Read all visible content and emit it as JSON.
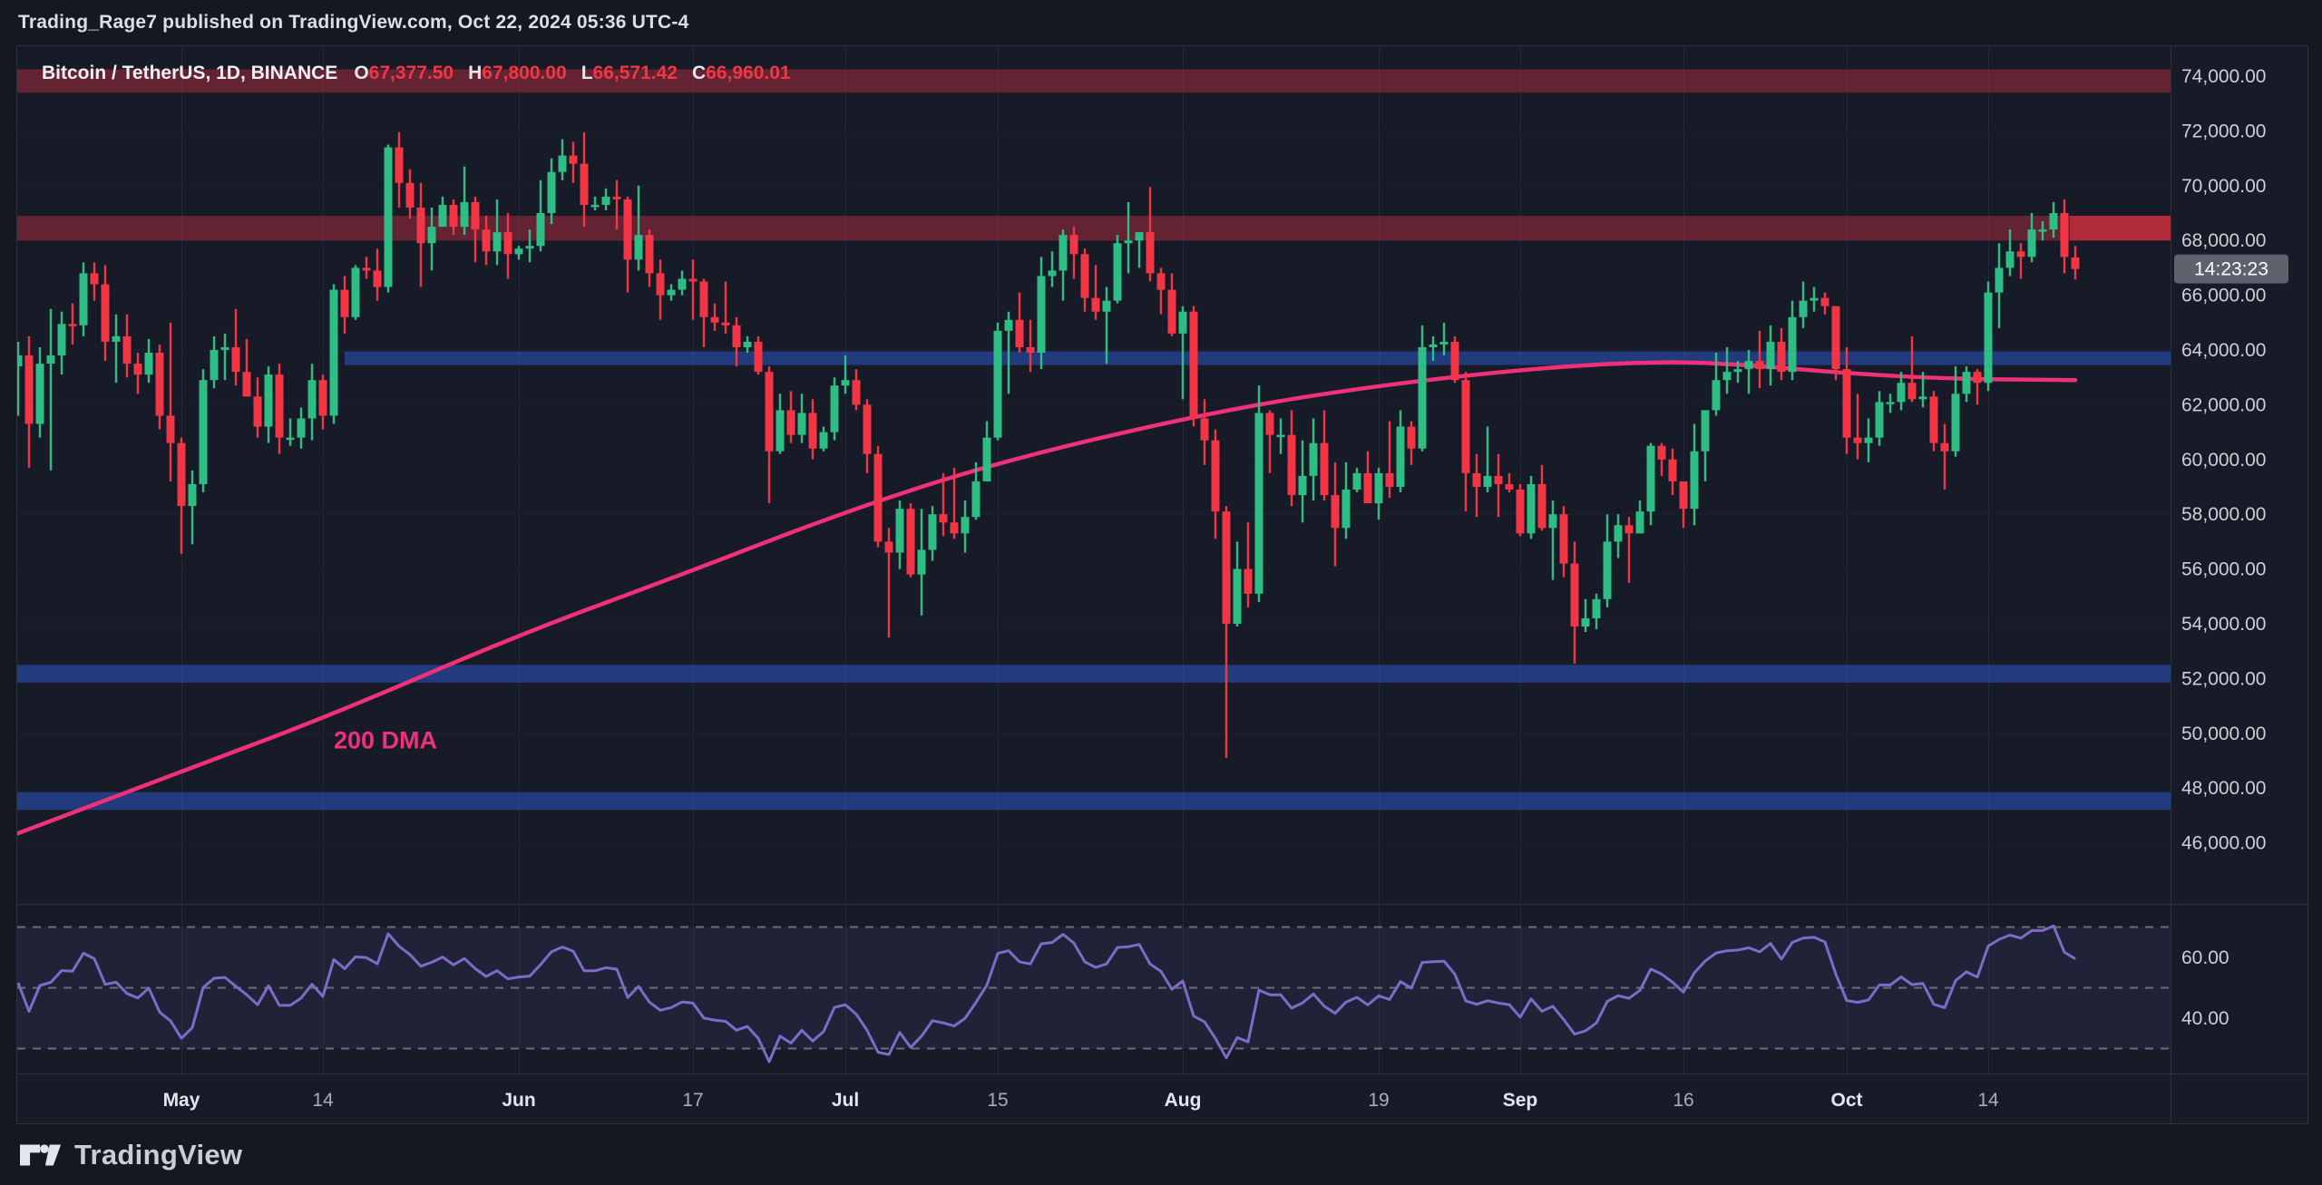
{
  "attribution_bar": {
    "text": "Trading_Rage7 published on TradingView.com, Oct 22, 2024 05:36 UTC-4"
  },
  "legend": {
    "symbol": "Bitcoin / TetherUS, 1D, BINANCE",
    "items": [
      {
        "label": "O",
        "value": "67,377.50"
      },
      {
        "label": "H",
        "value": "67,800.00"
      },
      {
        "label": "L",
        "value": "66,571.42"
      },
      {
        "label": "C",
        "value": "66,960.01"
      }
    ]
  },
  "footer": {
    "brand": "TradingView"
  },
  "colors": {
    "page_bg": "#141820",
    "pane_bg": "#161b27",
    "frame": "#2c3140",
    "grid_h": "#1d2230",
    "grid_v": "#232939",
    "axis_text": "#cbcfd8",
    "tick_major": "#e3e6ee",
    "tick_minor": "#a7acb8",
    "up": "#2ebd85",
    "down": "#f23645",
    "ma": "#f0317a",
    "rsi_line": "#7e6bc8",
    "rsi_fill": "rgba(126,100,210,0.10)",
    "rsi_level": "#6b6e79",
    "zone_red": "rgba(178,44,62,0.50)",
    "zone_red_bright": "rgba(242,54,69,0.55)",
    "zone_blue": "rgba(45,85,197,0.55)",
    "badge_bg": "#5e626c",
    "badge_text": "#ffffff"
  },
  "chart_data": {
    "type": "candlestick",
    "title": "Bitcoin / TetherUS, 1D, BINANCE",
    "start_date": "2024-04-15",
    "interval": "1D",
    "countdown": "14:23:23",
    "price_axis": {
      "min": 46000,
      "max": 74000,
      "step": 2000,
      "ylim": [
        43600,
        75100
      ]
    },
    "rsi_axis_labels": [
      60,
      40
    ],
    "rsi": {
      "period": 14,
      "levels": [
        70,
        50,
        30
      ]
    },
    "time_ticks": [
      {
        "label": "May",
        "day": 16,
        "major": true
      },
      {
        "label": "14",
        "day": 29,
        "major": false
      },
      {
        "label": "Jun",
        "day": 47,
        "major": true
      },
      {
        "label": "17",
        "day": 63,
        "major": false
      },
      {
        "label": "Jul",
        "day": 77,
        "major": true
      },
      {
        "label": "15",
        "day": 91,
        "major": false
      },
      {
        "label": "Aug",
        "day": 108,
        "major": true
      },
      {
        "label": "19",
        "day": 126,
        "major": false
      },
      {
        "label": "Sep",
        "day": 139,
        "major": true
      },
      {
        "label": "16",
        "day": 154,
        "major": false
      },
      {
        "label": "Oct",
        "day": 169,
        "major": true
      },
      {
        "label": "14",
        "day": 182,
        "major": false
      }
    ],
    "zones": [
      {
        "name": "resistance-74000",
        "color": "red",
        "top": 74250,
        "bottom": 73400
      },
      {
        "name": "resistance-68000",
        "color": "red",
        "top": 68900,
        "bottom": 68000,
        "emphasis_from_day": 189.5
      },
      {
        "name": "support-64000",
        "color": "blue",
        "top": 63950,
        "bottom": 63450,
        "from_day": 31
      },
      {
        "name": "support-52000",
        "color": "blue",
        "top": 52500,
        "bottom": 51850
      },
      {
        "name": "support-48000",
        "color": "blue",
        "top": 47850,
        "bottom": 47200
      }
    ],
    "ma_200": {
      "label": "200 DMA",
      "label_day": 30,
      "label_price": 49750,
      "points": [
        [
          0,
          46200
        ],
        [
          16,
          48600
        ],
        [
          30,
          50700
        ],
        [
          47,
          53600
        ],
        [
          62,
          55800
        ],
        [
          77,
          58100
        ],
        [
          91,
          59900
        ],
        [
          108,
          61500
        ],
        [
          122,
          62500
        ],
        [
          139,
          63300
        ],
        [
          152,
          63600
        ],
        [
          160,
          63450
        ],
        [
          169,
          63150
        ],
        [
          178,
          62950
        ],
        [
          190,
          62900
        ]
      ]
    },
    "candles": [
      [
        65700,
        66800,
        62300,
        63400
      ],
      [
        63400,
        64300,
        61600,
        63800
      ],
      [
        63800,
        64500,
        59700,
        61300
      ],
      [
        61300,
        64100,
        60800,
        63500
      ],
      [
        63500,
        65500,
        59600,
        63800
      ],
      [
        63800,
        65400,
        63100,
        64950
      ],
      [
        64950,
        65700,
        64200,
        64900
      ],
      [
        64900,
        67200,
        64500,
        66800
      ],
      [
        66800,
        67200,
        65800,
        66400
      ],
      [
        66400,
        67100,
        63600,
        64300
      ],
      [
        64300,
        65300,
        62800,
        64500
      ],
      [
        64500,
        65300,
        63000,
        63500
      ],
      [
        63500,
        63900,
        62400,
        63100
      ],
      [
        63100,
        64400,
        62800,
        63900
      ],
      [
        63900,
        64200,
        61100,
        61600
      ],
      [
        61600,
        65000,
        59200,
        60600
      ],
      [
        60600,
        60800,
        56550,
        58300
      ],
      [
        58300,
        59600,
        56900,
        59100
      ],
      [
        59100,
        63300,
        58800,
        62900
      ],
      [
        62900,
        64500,
        62600,
        64000
      ],
      [
        64000,
        64600,
        62900,
        64100
      ],
      [
        64100,
        65500,
        62700,
        63200
      ],
      [
        63200,
        64400,
        62300,
        62300
      ],
      [
        62300,
        63000,
        60800,
        61200
      ],
      [
        61200,
        63400,
        60600,
        63100
      ],
      [
        63100,
        63500,
        60200,
        60800
      ],
      [
        60800,
        61500,
        60500,
        60800
      ],
      [
        60800,
        61900,
        60400,
        61500
      ],
      [
        61500,
        63500,
        60700,
        62900
      ],
      [
        62900,
        63100,
        61100,
        61600
      ],
      [
        61600,
        66400,
        61300,
        66200
      ],
      [
        66200,
        66700,
        64600,
        65200
      ],
      [
        65200,
        67100,
        65100,
        67000
      ],
      [
        67000,
        67400,
        66600,
        66900
      ],
      [
        66900,
        67700,
        65800,
        66300
      ],
      [
        66300,
        71500,
        66100,
        71400
      ],
      [
        71400,
        71950,
        69200,
        70100
      ],
      [
        70100,
        70600,
        68800,
        69200
      ],
      [
        69200,
        70100,
        66300,
        67900
      ],
      [
        67900,
        69200,
        66900,
        68500
      ],
      [
        68500,
        69600,
        68500,
        69300
      ],
      [
        69300,
        69500,
        68200,
        68500
      ],
      [
        68500,
        70700,
        68200,
        69400
      ],
      [
        69400,
        69600,
        67200,
        68400
      ],
      [
        68400,
        68900,
        67100,
        67600
      ],
      [
        67600,
        69500,
        67100,
        68300
      ],
      [
        68300,
        69000,
        66600,
        67500
      ],
      [
        67500,
        67800,
        67300,
        67700
      ],
      [
        67700,
        68400,
        67200,
        67800
      ],
      [
        67800,
        70200,
        67600,
        69000
      ],
      [
        69000,
        71000,
        68600,
        70500
      ],
      [
        70500,
        71700,
        70200,
        71100
      ],
      [
        71100,
        71600,
        70100,
        70800
      ],
      [
        70800,
        71950,
        68500,
        69300
      ],
      [
        69300,
        69600,
        69100,
        69300
      ],
      [
        69300,
        69900,
        69100,
        69600
      ],
      [
        69600,
        70200,
        68400,
        69500
      ],
      [
        69500,
        69600,
        66100,
        67300
      ],
      [
        67300,
        70000,
        66900,
        68200
      ],
      [
        68200,
        68400,
        66300,
        66800
      ],
      [
        66800,
        67300,
        65100,
        66000
      ],
      [
        66000,
        66400,
        65800,
        66200
      ],
      [
        66200,
        66900,
        66000,
        66600
      ],
      [
        66600,
        67300,
        65100,
        66500
      ],
      [
        66500,
        66600,
        64100,
        65200
      ],
      [
        65200,
        65700,
        64700,
        65000
      ],
      [
        65000,
        66500,
        64600,
        64900
      ],
      [
        64900,
        65200,
        63400,
        64100
      ],
      [
        64100,
        64500,
        63900,
        64300
      ],
      [
        64300,
        64500,
        63100,
        63200
      ],
      [
        63200,
        63400,
        58400,
        60300
      ],
      [
        60300,
        62400,
        60200,
        61800
      ],
      [
        61800,
        62500,
        60600,
        60900
      ],
      [
        60900,
        62400,
        60600,
        61700
      ],
      [
        61700,
        62200,
        60000,
        60400
      ],
      [
        60400,
        61200,
        60300,
        61000
      ],
      [
        61000,
        63000,
        60700,
        62700
      ],
      [
        62700,
        63800,
        62400,
        62900
      ],
      [
        62900,
        63300,
        61800,
        62000
      ],
      [
        62000,
        62200,
        59500,
        60200
      ],
      [
        60200,
        60500,
        56800,
        57000
      ],
      [
        57000,
        57500,
        53500,
        56600
      ],
      [
        56600,
        58500,
        56000,
        58200
      ],
      [
        58200,
        58400,
        55700,
        55800
      ],
      [
        55800,
        58200,
        54300,
        56700
      ],
      [
        56700,
        58300,
        56300,
        58000
      ],
      [
        58000,
        59500,
        57200,
        57700
      ],
      [
        57700,
        59700,
        57100,
        57300
      ],
      [
        57300,
        58500,
        56600,
        57900
      ],
      [
        57900,
        59900,
        57800,
        59200
      ],
      [
        59200,
        61400,
        59200,
        60800
      ],
      [
        60800,
        65000,
        60700,
        64700
      ],
      [
        64700,
        65400,
        62400,
        65100
      ],
      [
        65100,
        66100,
        63900,
        64100
      ],
      [
        64100,
        65100,
        63200,
        63900
      ],
      [
        63900,
        67400,
        63300,
        66700
      ],
      [
        66700,
        67600,
        66300,
        66900
      ],
      [
        66900,
        68400,
        65800,
        68200
      ],
      [
        68200,
        68500,
        66600,
        67500
      ],
      [
        67500,
        67700,
        65400,
        65900
      ],
      [
        65900,
        67100,
        65100,
        65400
      ],
      [
        65400,
        66300,
        63500,
        65800
      ],
      [
        65800,
        68200,
        65700,
        67900
      ],
      [
        67900,
        69400,
        66800,
        68000
      ],
      [
        68000,
        68300,
        67000,
        68300
      ],
      [
        68300,
        69950,
        66500,
        66800
      ],
      [
        66800,
        67000,
        65300,
        66200
      ],
      [
        66200,
        66800,
        64500,
        64600
      ],
      [
        64600,
        65600,
        62200,
        65400
      ],
      [
        65400,
        65600,
        61200,
        61500
      ],
      [
        61500,
        62200,
        59800,
        60700
      ],
      [
        60700,
        61100,
        57100,
        58100
      ],
      [
        58100,
        58300,
        49100,
        54000
      ],
      [
        54000,
        57000,
        53900,
        56000
      ],
      [
        56000,
        57700,
        54600,
        55100
      ],
      [
        55100,
        62700,
        54800,
        61700
      ],
      [
        61700,
        61800,
        59500,
        60900
      ],
      [
        60900,
        61500,
        60200,
        60900
      ],
      [
        60900,
        61800,
        58300,
        58700
      ],
      [
        58700,
        60700,
        57700,
        59400
      ],
      [
        59400,
        61500,
        58500,
        60600
      ],
      [
        60600,
        61800,
        58500,
        58700
      ],
      [
        58700,
        59900,
        56100,
        57500
      ],
      [
        57500,
        59900,
        57100,
        58900
      ],
      [
        58900,
        59700,
        58800,
        59500
      ],
      [
        59500,
        60300,
        58500,
        58400
      ],
      [
        58400,
        59700,
        57800,
        59500
      ],
      [
        59500,
        61400,
        58600,
        59000
      ],
      [
        59000,
        61800,
        58800,
        61200
      ],
      [
        61200,
        61400,
        59800,
        60400
      ],
      [
        60400,
        64900,
        60300,
        64100
      ],
      [
        64100,
        64500,
        63600,
        64200
      ],
      [
        64200,
        65000,
        63800,
        64300
      ],
      [
        64300,
        64500,
        62800,
        62900
      ],
      [
        62900,
        63200,
        58100,
        59500
      ],
      [
        59500,
        60200,
        57900,
        59000
      ],
      [
        59000,
        61200,
        58800,
        59400
      ],
      [
        59400,
        60200,
        57900,
        59100
      ],
      [
        59100,
        59500,
        58800,
        58900
      ],
      [
        58900,
        59100,
        57200,
        57300
      ],
      [
        57300,
        59400,
        57100,
        59100
      ],
      [
        59100,
        59800,
        57400,
        57500
      ],
      [
        57500,
        58500,
        55600,
        58000
      ],
      [
        58000,
        58300,
        55700,
        56200
      ],
      [
        56200,
        57000,
        52550,
        53900
      ],
      [
        53900,
        54900,
        53700,
        54200
      ],
      [
        54200,
        55100,
        53800,
        54900
      ],
      [
        54900,
        58000,
        54600,
        57000
      ],
      [
        57000,
        58000,
        56400,
        57600
      ],
      [
        57600,
        57900,
        55500,
        57300
      ],
      [
        57300,
        58500,
        57300,
        58100
      ],
      [
        58100,
        60600,
        57600,
        60500
      ],
      [
        60500,
        60600,
        59400,
        60000
      ],
      [
        60000,
        60400,
        58700,
        59200
      ],
      [
        59200,
        59200,
        57500,
        58200
      ],
      [
        58200,
        61300,
        57600,
        60300
      ],
      [
        60300,
        61800,
        59200,
        61800
      ],
      [
        61800,
        63900,
        61600,
        62900
      ],
      [
        62900,
        64100,
        62400,
        63200
      ],
      [
        63200,
        63600,
        62800,
        63300
      ],
      [
        63300,
        64000,
        62400,
        63600
      ],
      [
        63600,
        64700,
        62600,
        63300
      ],
      [
        63300,
        64900,
        62700,
        64300
      ],
      [
        64300,
        64800,
        62900,
        63200
      ],
      [
        63200,
        65800,
        62900,
        65200
      ],
      [
        65200,
        66500,
        64800,
        65800
      ],
      [
        65800,
        66300,
        65400,
        65900
      ],
      [
        65900,
        66100,
        65300,
        65600
      ],
      [
        65600,
        65600,
        62900,
        63300
      ],
      [
        63300,
        64100,
        60200,
        60800
      ],
      [
        60800,
        62400,
        60000,
        60600
      ],
      [
        60600,
        61500,
        59900,
        60800
      ],
      [
        60800,
        62500,
        60500,
        62100
      ],
      [
        62100,
        62400,
        61700,
        62100
      ],
      [
        62100,
        63200,
        61800,
        62800
      ],
      [
        62800,
        64500,
        62100,
        62200
      ],
      [
        62200,
        63200,
        61900,
        62300
      ],
      [
        62300,
        62500,
        60300,
        60600
      ],
      [
        60600,
        61300,
        58900,
        60300
      ],
      [
        60300,
        63400,
        60100,
        62400
      ],
      [
        62400,
        63400,
        62100,
        63200
      ],
      [
        63200,
        63300,
        62000,
        62800
      ],
      [
        62800,
        66500,
        62500,
        66100
      ],
      [
        66100,
        67900,
        64800,
        67000
      ],
      [
        67000,
        68400,
        66700,
        67600
      ],
      [
        67600,
        67900,
        66600,
        67400
      ],
      [
        67400,
        69000,
        67200,
        68400
      ],
      [
        68400,
        68700,
        68000,
        68400
      ],
      [
        68400,
        69400,
        68100,
        69000
      ],
      [
        69000,
        69500,
        66800,
        67400
      ],
      [
        67377.5,
        67800,
        66571.42,
        66960.01
      ]
    ]
  }
}
